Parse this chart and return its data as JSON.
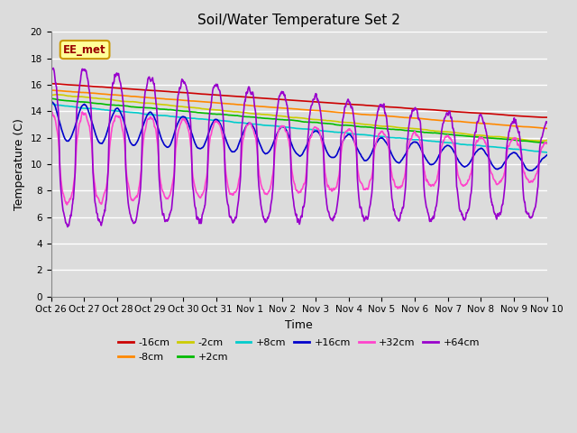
{
  "title": "Soil/Water Temperature Set 2",
  "xlabel": "Time",
  "ylabel": "Temperature (C)",
  "ylim": [
    0,
    20
  ],
  "yticks": [
    0,
    2,
    4,
    6,
    8,
    10,
    12,
    14,
    16,
    18,
    20
  ],
  "background_color": "#dcdcdc",
  "annotation_text": "EE_met",
  "annotation_bg": "#ffff99",
  "annotation_border": "#cc9900",
  "x_labels": [
    "Oct 26",
    "Oct 27",
    "Oct 28",
    "Oct 29",
    "Oct 30",
    "Oct 31",
    "Nov 1",
    "Nov 2",
    "Nov 3",
    "Nov 4",
    "Nov 5",
    "Nov 6",
    "Nov 7",
    "Nov 8",
    "Nov 9",
    "Nov 10"
  ],
  "series": {
    "-16cm": {
      "color": "#cc0000",
      "linewidth": 1.2
    },
    "-8cm": {
      "color": "#ff8800",
      "linewidth": 1.2
    },
    "-2cm": {
      "color": "#cccc00",
      "linewidth": 1.2
    },
    "+2cm": {
      "color": "#00bb00",
      "linewidth": 1.2
    },
    "+8cm": {
      "color": "#00cccc",
      "linewidth": 1.2
    },
    "+16cm": {
      "color": "#0000cc",
      "linewidth": 1.2
    },
    "+32cm": {
      "color": "#ff44cc",
      "linewidth": 1.2
    },
    "+64cm": {
      "color": "#9900cc",
      "linewidth": 1.2
    }
  },
  "legend_order": [
    "-16cm",
    "-8cm",
    "-2cm",
    "+2cm",
    "+8cm",
    "+16cm",
    "+32cm",
    "+64cm"
  ]
}
